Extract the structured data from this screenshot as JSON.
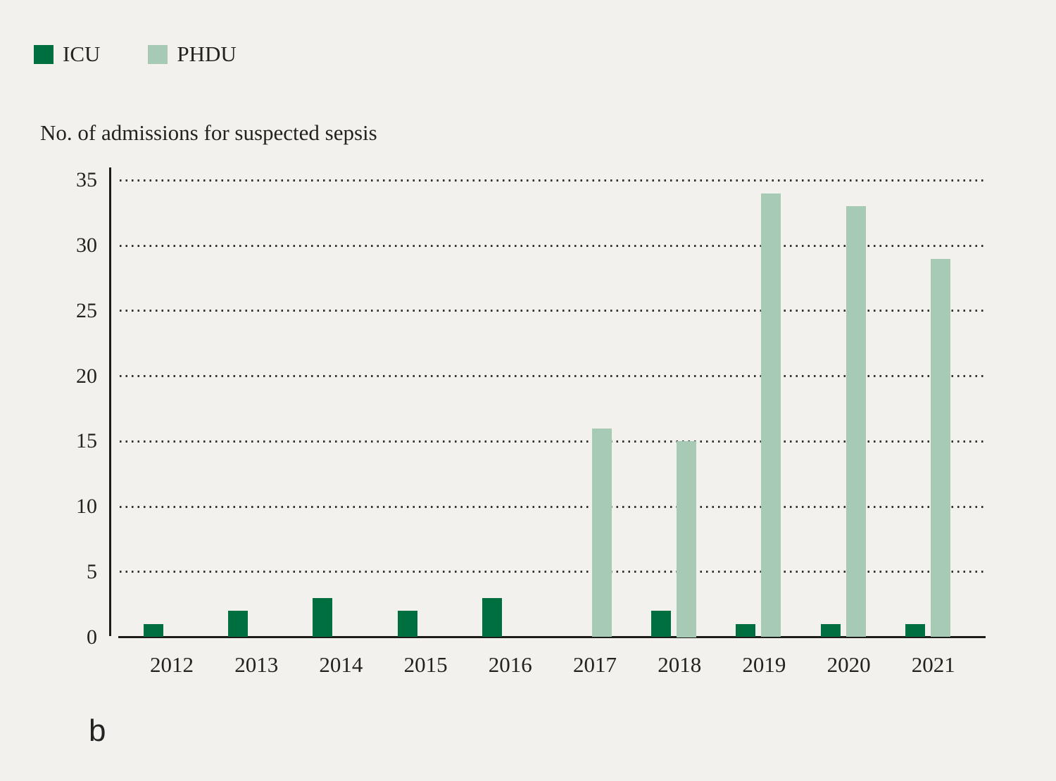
{
  "page": {
    "panel_label": "b",
    "background_color": "#f2f1ee"
  },
  "legend": {
    "items": [
      {
        "label": "ICU",
        "color": "#006f3f"
      },
      {
        "label": "PHDU",
        "color": "#a6cab3"
      }
    ]
  },
  "chart_data": {
    "type": "bar",
    "title": "No. of admissions for suspected sepsis",
    "categories": [
      "2012",
      "2013",
      "2014",
      "2015",
      "2016",
      "2017",
      "2018",
      "2019",
      "2020",
      "2021"
    ],
    "series": [
      {
        "name": "ICU",
        "color": "#006f3f",
        "values": [
          1,
          2,
          3,
          2,
          3,
          0,
          2,
          1,
          1,
          1
        ]
      },
      {
        "name": "PHDU",
        "color": "#a6cab3",
        "values": [
          0,
          0,
          0,
          0,
          0,
          16,
          15,
          34,
          33,
          29
        ]
      }
    ],
    "ylabel": "No. of admissions for suspected sepsis",
    "xlabel": "",
    "ylim": [
      0,
      35
    ],
    "yticks": [
      0,
      5,
      10,
      15,
      20,
      25,
      30,
      35
    ],
    "grid": "horizontal-dotted",
    "legend_position": "top-left",
    "axis_color": "#1d1c19",
    "text_color": "#23221f"
  }
}
